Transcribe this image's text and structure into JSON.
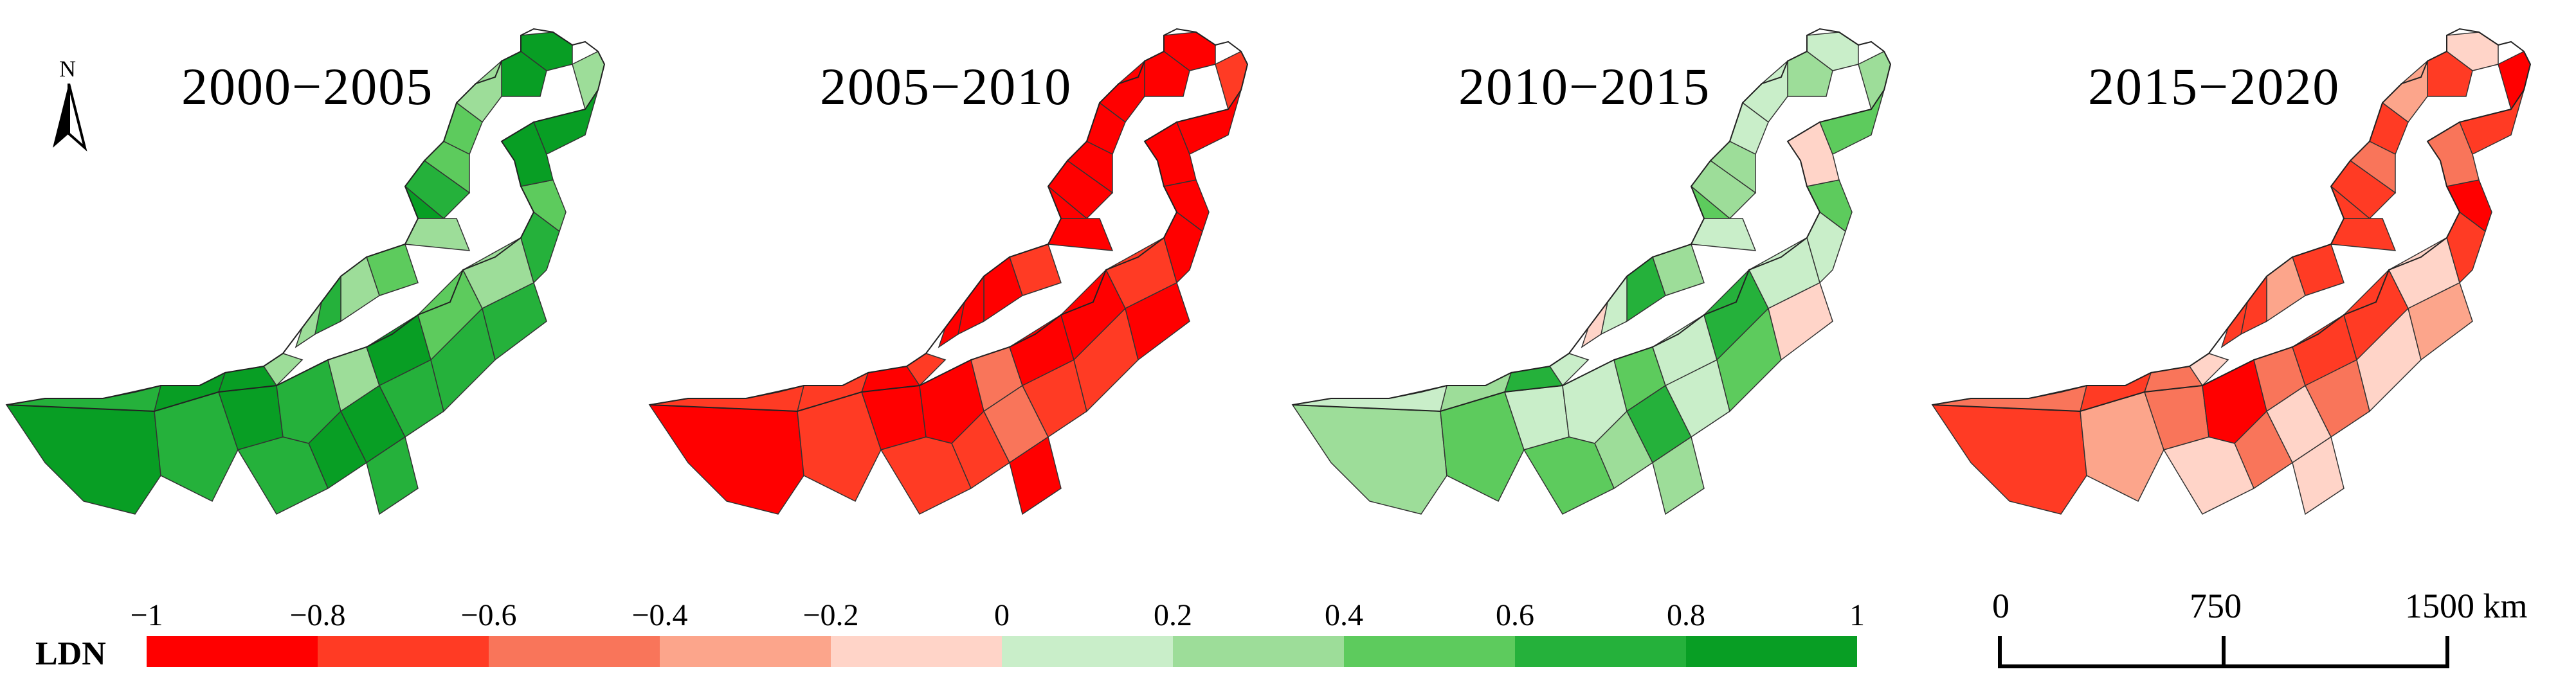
{
  "legend": {
    "title": "LDN",
    "ticks": [
      "−1",
      "−0.8",
      "−0.6",
      "−0.4",
      "−0.2",
      "0",
      "0.2",
      "0.4",
      "0.6",
      "0.8",
      "1"
    ],
    "colors": [
      "#ff0000",
      "#ff3b24",
      "#f9755a",
      "#fca58b",
      "#ffd4c8",
      "#c9eec9",
      "#9ddd99",
      "#5dcb5d",
      "#25b13b",
      "#089e24"
    ]
  },
  "north_arrow": {
    "label": "N"
  },
  "scale_bar": {
    "labels": [
      "0",
      "750",
      "1500 km"
    ]
  },
  "panels": [
    {
      "title": "2000−2005",
      "dominant_class": 8
    },
    {
      "title": "2005−2010",
      "dominant_class": 0
    },
    {
      "title": "2010−2015",
      "dominant_class": 6
    },
    {
      "title": "2015−2020",
      "dominant_class": 2
    }
  ]
}
